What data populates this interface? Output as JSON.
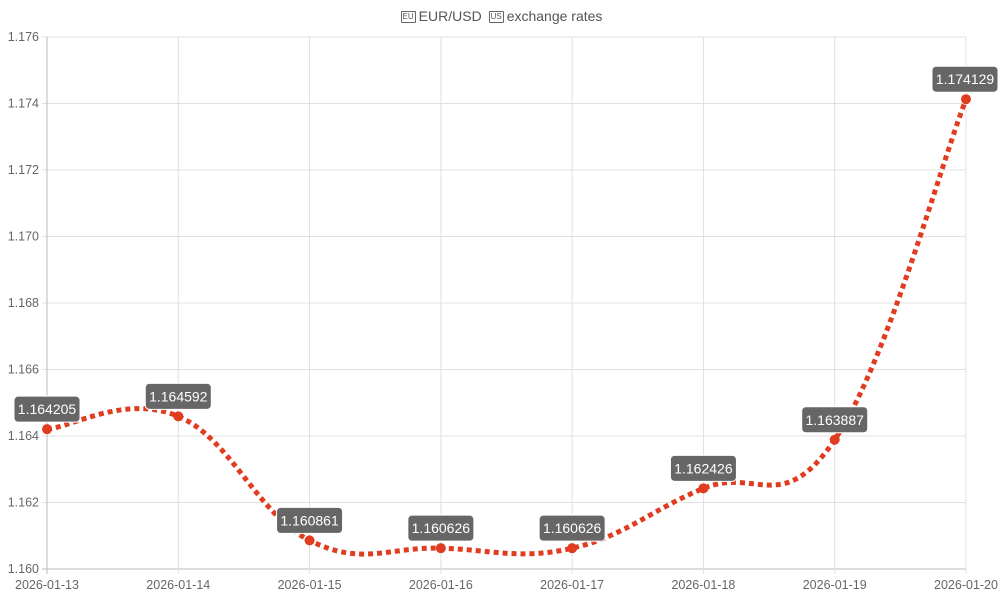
{
  "chart_data": {
    "type": "line",
    "title": "EUR/USD exchange rates",
    "title_parts": {
      "base_flag_icon": "eu-flag-icon",
      "base": "EUR",
      "sep": "/",
      "quote": "USD",
      "quote_flag_icon": "us-flag-icon",
      "suffix": "exchange rates"
    },
    "x": [
      "2026-01-13",
      "2026-01-14",
      "2026-01-15",
      "2026-01-16",
      "2026-01-17",
      "2026-01-18",
      "2026-01-19",
      "2026-01-20"
    ],
    "values": [
      1.164205,
      1.164592,
      1.160861,
      1.160626,
      1.160626,
      1.162426,
      1.163887,
      1.174129
    ],
    "data_labels": [
      "1.164205",
      "1.164592",
      "1.160861",
      "1.160626",
      "1.160626",
      "1.162426",
      "1.163887",
      "1.174129"
    ],
    "ylim": [
      1.16,
      1.176
    ],
    "yticks": [
      "1.160",
      "1.162",
      "1.164",
      "1.166",
      "1.168",
      "1.170",
      "1.172",
      "1.174",
      "1.176"
    ],
    "grid": true,
    "line_style": "dotted smooth",
    "colors": {
      "line": "#e03c20",
      "label_bg": "#666666",
      "label_text": "#ffffff",
      "grid": "#e0e0e0"
    }
  }
}
